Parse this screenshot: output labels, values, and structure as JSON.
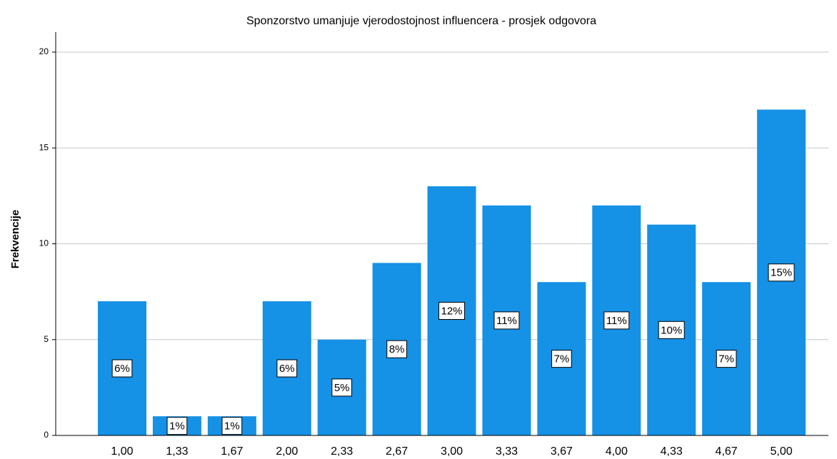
{
  "chart_data": {
    "type": "bar",
    "title": "Sponzorstvo umanjuje vjerodostojnost influencera - prosjek odgovora",
    "y_label": "Frekvencije",
    "categories": [
      "1,00",
      "1,33",
      "1,67",
      "2,00",
      "2,33",
      "2,67",
      "3,00",
      "3,33",
      "3,67",
      "4,00",
      "4,33",
      "4,67",
      "5,00"
    ],
    "values": [
      7,
      1,
      1,
      7,
      5,
      9,
      13,
      12,
      8,
      12,
      11,
      8,
      17
    ],
    "percentages": {
      "values": [
        6,
        1,
        1,
        6,
        5,
        8,
        12,
        11,
        7,
        11,
        10,
        7,
        15
      ],
      "value_labels": [
        "6%",
        "1%",
        "1%",
        "6%",
        "5%",
        "8%",
        "12%",
        "11%",
        "7%",
        "11%",
        "10%",
        "7%",
        "15%"
      ]
    },
    "color": "#1591e6",
    "ylim": [
      0,
      21
    ],
    "yticks": [
      0,
      5,
      10,
      15,
      20
    ],
    "grid": true
  }
}
